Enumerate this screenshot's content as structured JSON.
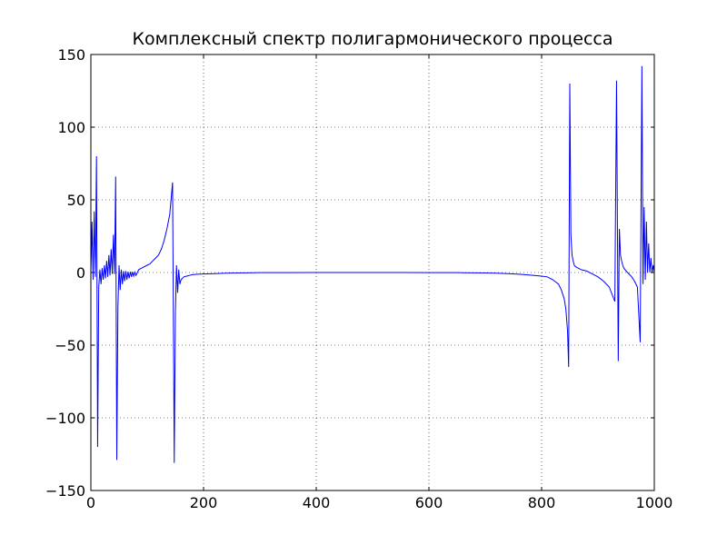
{
  "chart_data": {
    "type": "line",
    "title": "Комплексный спектр полигармонического процесса",
    "xlabel": "",
    "ylabel": "",
    "xlim": [
      0,
      1000
    ],
    "ylim": [
      -150,
      150
    ],
    "xticks": [
      0,
      200,
      400,
      600,
      800,
      1000
    ],
    "yticks": [
      -150,
      -100,
      -50,
      0,
      50,
      100,
      150
    ],
    "xtick_labels": [
      "0",
      "200",
      "400",
      "600",
      "800",
      "1000"
    ],
    "ytick_labels": [
      "−150",
      "−100",
      "−50",
      "0",
      "50",
      "100",
      "150"
    ],
    "grid": true,
    "legend": "none",
    "series_color": "#0000ff",
    "series": [
      {
        "x": [
          0,
          2,
          4,
          6,
          8,
          10,
          12,
          14,
          16,
          18,
          20,
          22,
          24,
          26,
          28,
          30,
          32,
          34,
          36,
          38,
          40,
          42,
          44,
          46,
          48,
          50,
          52,
          54,
          56,
          58,
          60,
          62,
          64,
          66,
          68,
          70,
          72,
          74,
          76,
          78,
          80,
          85,
          90,
          95,
          100,
          105,
          110,
          115,
          120,
          125,
          130,
          135,
          140,
          145,
          148,
          150,
          152,
          154,
          156,
          158,
          160,
          165,
          170,
          175,
          180,
          190,
          200,
          220,
          240,
          260,
          280,
          300,
          350,
          400,
          450,
          500,
          550,
          600,
          650,
          700,
          720,
          740,
          760,
          780,
          800,
          810,
          820,
          830,
          835,
          840,
          843,
          846,
          848,
          850,
          852,
          854,
          856,
          858,
          860,
          865,
          870,
          875,
          880,
          890,
          900,
          910,
          920,
          925,
          930,
          933,
          936,
          938,
          940,
          942,
          944,
          946,
          948,
          950,
          955,
          960,
          965,
          970,
          975,
          978,
          980,
          982,
          984,
          986,
          988,
          990,
          992,
          994,
          996,
          998,
          1000
        ],
        "y": [
          0,
          35,
          -5,
          42,
          -3,
          80,
          -120,
          -10,
          2,
          -8,
          3,
          -5,
          5,
          -4,
          8,
          -3,
          12,
          -2,
          16,
          -1,
          26,
          -1,
          66,
          -129,
          -24,
          5,
          -12,
          2,
          -8,
          1,
          -6,
          1,
          -5,
          0.5,
          -4,
          0.5,
          -3,
          0.5,
          -2.5,
          0.3,
          -2,
          2,
          3,
          4,
          5,
          6,
          8,
          10,
          12,
          16,
          22,
          30,
          40,
          62,
          -131,
          -28,
          5,
          -14,
          2,
          -8,
          -5,
          -3,
          -2.5,
          -2,
          -1.5,
          -1.2,
          -1,
          -0.8,
          -0.5,
          -0.3,
          -0.2,
          -0.1,
          -0.05,
          0,
          0,
          0,
          0,
          -0.05,
          -0.1,
          -0.3,
          -0.5,
          -0.8,
          -1.2,
          -1.8,
          -2.5,
          -3,
          -5,
          -8,
          -12,
          -18,
          -25,
          -40,
          -65,
          130,
          26,
          12,
          8,
          5,
          4,
          3,
          2,
          1.5,
          1,
          -1,
          -3,
          -6,
          -10,
          -15,
          -20,
          132,
          -61,
          30,
          12,
          8,
          5,
          3,
          2,
          1,
          -1,
          -3,
          -6,
          -10,
          -48,
          142,
          -8,
          45,
          -5,
          35,
          0,
          20,
          0,
          10,
          0,
          5,
          0
        ]
      }
    ]
  }
}
